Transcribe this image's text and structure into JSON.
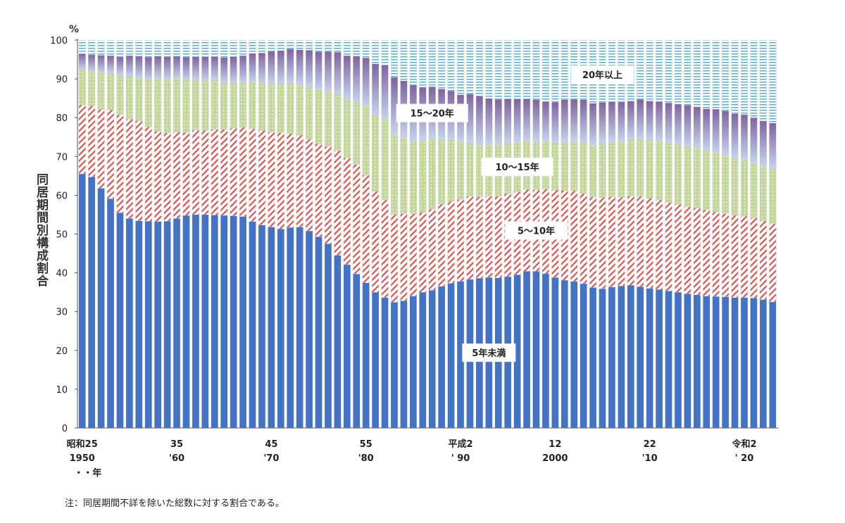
{
  "chart_data": {
    "type": "bar",
    "stacked": true,
    "unit_label": "%",
    "ylabel": "同居期間別構成割合",
    "ylim": [
      0,
      100
    ],
    "yticks": [
      0,
      10,
      20,
      30,
      40,
      50,
      60,
      70,
      80,
      90,
      100
    ],
    "x_tick_labels": [
      {
        "index": 0,
        "line1": "昭和25",
        "line2": "1950"
      },
      {
        "index": 10,
        "line1": "35",
        "line2": "'60"
      },
      {
        "index": 20,
        "line1": "45",
        "line2": "'70"
      },
      {
        "index": 30,
        "line1": "55",
        "line2": "'80"
      },
      {
        "index": 40,
        "line1": "平成2",
        "line2": "' 90"
      },
      {
        "index": 50,
        "line1": "12",
        "line2": "2000"
      },
      {
        "index": 60,
        "line1": "22",
        "line2": "'10"
      },
      {
        "index": 70,
        "line1": "令和2",
        "line2": "' 20"
      }
    ],
    "x_unit_label": "・・年",
    "series": [
      {
        "name": "5年未満",
        "color": "#4472c4",
        "values": [
          65.5,
          64.7,
          61.8,
          59.1,
          55.5,
          54.0,
          53.4,
          53.3,
          53.2,
          53.3,
          54.0,
          54.8,
          55.0,
          55.0,
          54.9,
          54.8,
          54.7,
          54.5,
          53.2,
          52.3,
          51.8,
          51.3,
          51.7,
          51.8,
          50.8,
          49.3,
          47.5,
          44.5,
          42.1,
          39.7,
          37.4,
          35.0,
          33.6,
          32.4,
          32.8,
          34.0,
          35.0,
          35.5,
          36.5,
          37.3,
          37.8,
          38.3,
          38.6,
          38.8,
          38.7,
          39.0,
          39.5,
          40.4,
          40.4,
          39.8,
          38.8,
          38.1,
          37.8,
          37.2,
          36.2,
          35.9,
          36.3,
          36.6,
          36.8,
          36.4,
          36.0,
          35.7,
          35.3,
          35.0,
          34.6,
          34.3,
          34.0,
          33.9,
          33.8,
          33.6,
          33.6,
          33.5,
          33.1,
          32.5
        ]
      },
      {
        "name": "5～10年",
        "color": "#d9534f",
        "values": [
          17.8,
          18.4,
          20.3,
          22.9,
          25.2,
          25.6,
          25.8,
          24.3,
          23.3,
          22.8,
          22.3,
          21.4,
          21.8,
          21.7,
          22.1,
          22.2,
          22.6,
          23.0,
          23.9,
          24.4,
          24.4,
          24.8,
          24.2,
          23.7,
          23.7,
          24.0,
          25.1,
          27.0,
          27.5,
          28.2,
          27.8,
          26.0,
          25.2,
          22.6,
          22.4,
          21.2,
          20.6,
          20.9,
          21.2,
          21.1,
          21.1,
          21.4,
          21.0,
          20.9,
          21.0,
          21.4,
          21.4,
          21.1,
          21.0,
          21.8,
          22.6,
          23.1,
          23.3,
          23.2,
          23.3,
          23.5,
          23.3,
          22.9,
          23.0,
          23.3,
          23.2,
          23.1,
          22.8,
          22.7,
          22.4,
          22.4,
          22.2,
          21.8,
          21.4,
          21.2,
          21.0,
          20.6,
          20.2,
          20.1
        ]
      },
      {
        "name": "10～15年",
        "color": "#9bbb59",
        "values": [
          9.0,
          8.8,
          9.5,
          9.4,
          10.2,
          11.1,
          11.1,
          12.2,
          13.6,
          13.8,
          13.9,
          13.6,
          12.9,
          12.8,
          12.7,
          12.0,
          11.6,
          11.4,
          12.0,
          12.1,
          12.6,
          12.6,
          12.9,
          12.9,
          13.3,
          13.7,
          14.0,
          14.5,
          15.2,
          16.1,
          17.8,
          19.5,
          20.7,
          20.7,
          19.5,
          18.6,
          18.5,
          18.0,
          16.5,
          15.9,
          14.8,
          13.8,
          13.3,
          13.3,
          13.2,
          13.0,
          12.8,
          12.4,
          12.4,
          12.3,
          12.1,
          12.4,
          12.8,
          13.1,
          13.3,
          13.9,
          14.1,
          14.4,
          14.5,
          14.8,
          15.0,
          15.2,
          15.3,
          15.3,
          15.5,
          15.4,
          15.2,
          15.2,
          15.1,
          14.8,
          14.5,
          14.1,
          14.1,
          14.2
        ]
      },
      {
        "name": "15～20年",
        "color": "#8064a2",
        "values": [
          4.2,
          4.3,
          4.5,
          4.6,
          4.8,
          5.3,
          5.6,
          5.8,
          5.8,
          5.9,
          5.7,
          5.8,
          6.0,
          6.2,
          6.1,
          6.5,
          6.8,
          7.1,
          7.5,
          7.9,
          8.3,
          8.6,
          8.9,
          9.1,
          9.6,
          10.0,
          10.4,
          10.9,
          11.2,
          11.9,
          12.4,
          13.4,
          14.0,
          14.7,
          14.8,
          14.6,
          13.8,
          13.6,
          13.2,
          12.6,
          12.2,
          12.6,
          12.7,
          12.0,
          11.8,
          11.4,
          11.1,
          10.9,
          10.8,
          10.3,
          10.5,
          11.0,
          10.8,
          11.1,
          10.9,
          10.6,
          10.4,
          10.1,
          10.0,
          10.2,
          10.1,
          10.2,
          10.4,
          10.5,
          10.7,
          10.7,
          10.9,
          11.3,
          11.4,
          11.4,
          11.7,
          11.8,
          11.8,
          11.8
        ]
      },
      {
        "name": "20年以上",
        "color": "#4bacc6",
        "values": [
          3.5,
          3.8,
          3.9,
          4.0,
          4.3,
          4.0,
          4.1,
          4.4,
          4.1,
          4.2,
          4.1,
          4.4,
          4.3,
          4.3,
          4.2,
          4.5,
          4.3,
          4.0,
          3.4,
          3.3,
          2.9,
          2.7,
          2.3,
          2.5,
          2.6,
          3.0,
          3.0,
          3.1,
          4.0,
          4.1,
          4.6,
          6.1,
          6.5,
          9.6,
          10.5,
          11.6,
          12.1,
          12.0,
          12.6,
          13.1,
          14.1,
          13.9,
          14.4,
          15.0,
          15.3,
          15.2,
          15.2,
          15.2,
          15.4,
          15.8,
          16.0,
          15.4,
          15.3,
          15.4,
          16.3,
          16.1,
          15.9,
          16.0,
          15.7,
          15.3,
          15.7,
          15.8,
          16.2,
          16.5,
          16.8,
          17.2,
          17.7,
          17.8,
          18.3,
          19.0,
          19.2,
          20.0,
          20.8,
          21.4
        ]
      }
    ],
    "series_labels": [
      {
        "series": 0,
        "text": "5年未満"
      },
      {
        "series": 1,
        "text": "5～10年"
      },
      {
        "series": 2,
        "text": "10～15年"
      },
      {
        "series": 3,
        "text": "15～20年"
      },
      {
        "series": 4,
        "text": "20年以上"
      }
    ],
    "note": "注：同居期間不詳を除いた総数に対する割合である。"
  }
}
